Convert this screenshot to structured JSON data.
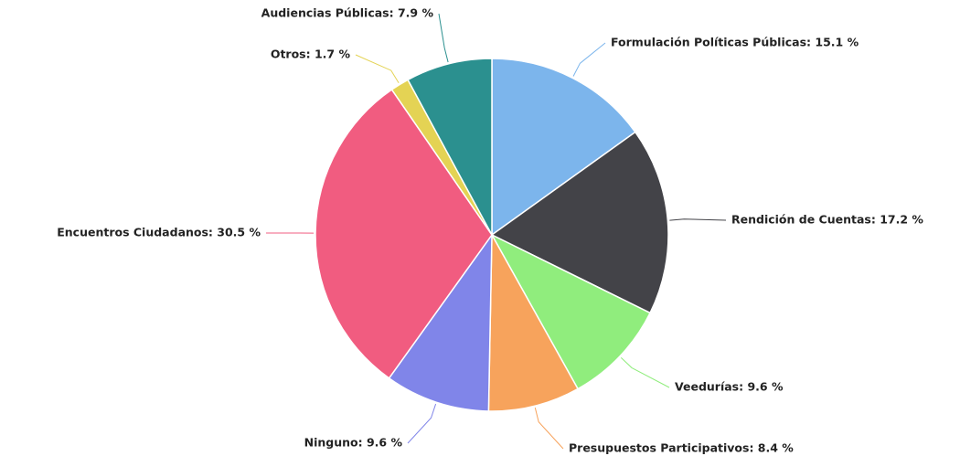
{
  "chart_data": {
    "type": "pie",
    "categories": [
      "Formulación Políticas Públicas",
      "Rendición de Cuentas",
      "Veedurías",
      "Presupuestos Participativos",
      "Ninguno",
      "Encuentros Ciudadanos",
      "Otros",
      "Audiencias Públicas"
    ],
    "values": [
      15.1,
      17.2,
      9.6,
      8.4,
      9.6,
      30.5,
      1.7,
      7.9
    ],
    "value_labels": [
      "Formulación Políticas Públicas: 15.1 %",
      "Rendición de Cuentas: 17.2 %",
      "Veedurías: 9.6 %",
      "Presupuestos Participativos: 8.4 %",
      "Ninguno: 9.6 %",
      "Encuentros Ciudadanos: 30.5 %",
      "Otros: 1.7 %",
      "Audiencias Públicas: 7.9 %"
    ],
    "colors": [
      "#7cb5ec",
      "#434348",
      "#90ed7d",
      "#f7a35c",
      "#8085e9",
      "#f15c80",
      "#e4d354",
      "#2b908f"
    ]
  }
}
